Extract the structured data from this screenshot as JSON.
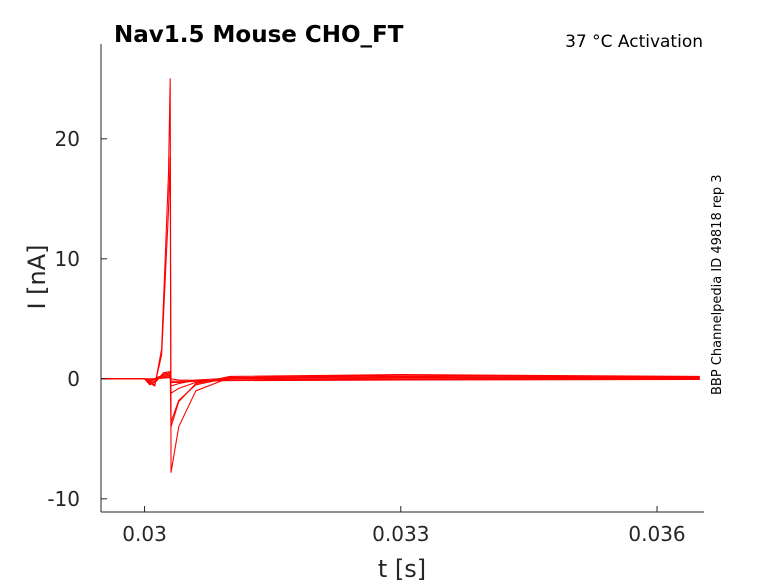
{
  "chart_data": {
    "type": "line",
    "title": "Nav1.5  Mouse  CHO_FT",
    "subtitle": "37 °C  Activation",
    "side_label": "BBP Channelpedia ID 49818 rep 3",
    "xlabel": "t [s]",
    "ylabel": "I [nA]",
    "xlim": [
      0.02949,
      0.03655
    ],
    "ylim": [
      -11.1,
      27.9
    ],
    "xticks": [
      0.03,
      0.033,
      0.036
    ],
    "xtick_labels": [
      "0.03",
      "0.033",
      "0.036"
    ],
    "yticks": [
      -10,
      0,
      10,
      20
    ],
    "ytick_labels": [
      "-10",
      "0",
      "10",
      "20"
    ],
    "grid": false,
    "line_color": "#ff0000",
    "series": [
      {
        "x": [
          0.02949,
          0.03,
          0.03005,
          0.03012,
          0.0302,
          0.03028,
          0.0303,
          0.03031,
          0.0304,
          0.0306,
          0.031,
          0.033,
          0.0365
        ],
        "y": [
          0.0,
          0.0,
          -0.3,
          -0.6,
          2.5,
          17.0,
          25.0,
          -4.0,
          -1.9,
          -0.4,
          0.2,
          0.35,
          0.2
        ]
      },
      {
        "x": [
          0.02949,
          0.03,
          0.03005,
          0.03012,
          0.0302,
          0.03028,
          0.0303,
          0.03031,
          0.0304,
          0.0306,
          0.031,
          0.033,
          0.0365
        ],
        "y": [
          0.0,
          0.0,
          -0.3,
          -0.5,
          2.0,
          14.0,
          18.5,
          -7.8,
          -4.0,
          -1.0,
          0.1,
          0.3,
          0.15
        ]
      },
      {
        "x": [
          0.02949,
          0.03,
          0.03006,
          0.03014,
          0.03022,
          0.0303,
          0.03031,
          0.0304,
          0.0306,
          0.031,
          0.033,
          0.0365
        ],
        "y": [
          0.0,
          0.0,
          -0.5,
          -0.2,
          0.5,
          0.6,
          -3.6,
          -1.8,
          -0.5,
          0.1,
          0.2,
          0.1
        ]
      },
      {
        "x": [
          0.02949,
          0.03,
          0.03006,
          0.03014,
          0.03022,
          0.0303,
          0.03031,
          0.0304,
          0.0306,
          0.031,
          0.033,
          0.0365
        ],
        "y": [
          0.0,
          0.0,
          -0.4,
          -0.1,
          0.4,
          0.5,
          -1.2,
          -0.8,
          -0.3,
          0.0,
          0.1,
          0.05
        ]
      },
      {
        "x": [
          0.02949,
          0.03,
          0.03006,
          0.03014,
          0.03022,
          0.0303,
          0.03031,
          0.0304,
          0.0306,
          0.031,
          0.033,
          0.0365
        ],
        "y": [
          0.0,
          0.0,
          -0.3,
          0.1,
          0.3,
          0.4,
          -0.6,
          -0.4,
          -0.1,
          0.05,
          0.1,
          0.05
        ]
      },
      {
        "x": [
          0.02949,
          0.03,
          0.03006,
          0.03014,
          0.03022,
          0.0303,
          0.03031,
          0.0304,
          0.0306,
          0.031,
          0.033,
          0.0365
        ],
        "y": [
          0.0,
          0.0,
          -0.2,
          0.0,
          0.2,
          0.3,
          -0.3,
          -0.3,
          -0.2,
          -0.1,
          -0.05,
          0.0
        ]
      },
      {
        "x": [
          0.02949,
          0.03,
          0.03006,
          0.03014,
          0.03022,
          0.0303,
          0.03031,
          0.0304,
          0.0306,
          0.031,
          0.033,
          0.0365
        ],
        "y": [
          0.0,
          0.0,
          -0.1,
          0.0,
          0.1,
          0.2,
          -0.2,
          -0.2,
          -0.2,
          -0.15,
          -0.1,
          -0.05
        ]
      },
      {
        "x": [
          0.02949,
          0.03,
          0.0301,
          0.0303,
          0.03031,
          0.0304,
          0.0308,
          0.0315,
          0.033,
          0.0365
        ],
        "y": [
          0.0,
          0.0,
          0.0,
          0.1,
          0.0,
          -0.1,
          -0.15,
          -0.05,
          0.0,
          0.0
        ]
      }
    ]
  }
}
